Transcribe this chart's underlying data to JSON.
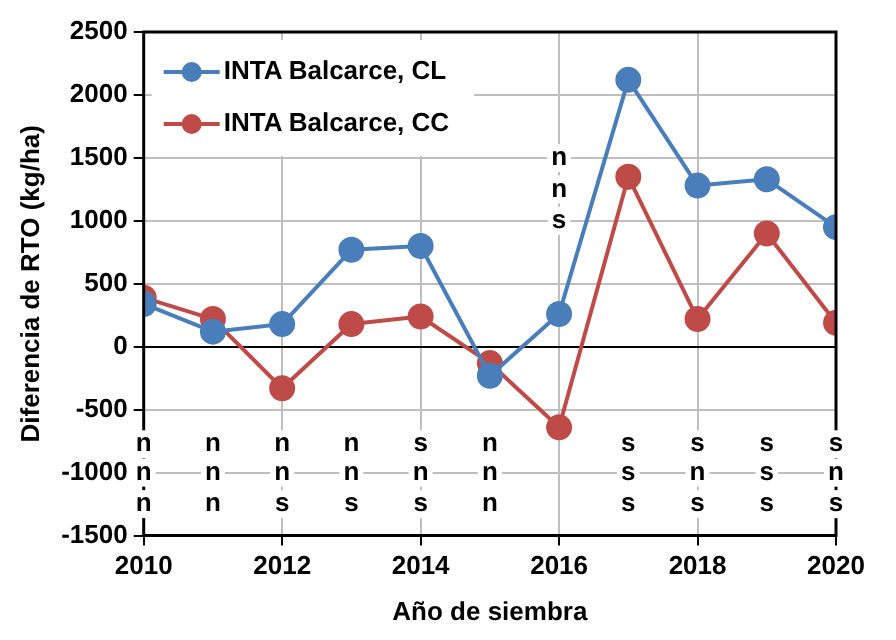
{
  "chart_data": {
    "type": "line",
    "xlabel": "Año de siembra",
    "ylabel": "Diferencia de RTO (kg/ha)",
    "x": [
      2010,
      2011,
      2012,
      2013,
      2014,
      2015,
      2016,
      2017,
      2018,
      2019,
      2020
    ],
    "series": [
      {
        "name": "INTA Balcarce, CL",
        "color": "#4a7ebb",
        "values": [
          340,
          120,
          180,
          770,
          800,
          -230,
          260,
          2120,
          1280,
          1330,
          950
        ]
      },
      {
        "name": "INTA Balcarce, CC",
        "color": "#be4b48",
        "values": [
          390,
          220,
          -330,
          180,
          240,
          -130,
          -640,
          1350,
          220,
          900,
          190
        ]
      }
    ],
    "xlim": [
      2010,
      2020
    ],
    "xticks": [
      2010,
      2012,
      2014,
      2016,
      2018,
      2020
    ],
    "ylim": [
      -1500,
      2500
    ],
    "yticks": [
      -1500,
      -1000,
      -500,
      0,
      500,
      1000,
      1500,
      2000,
      2500
    ],
    "grid": true,
    "legend": "top left",
    "marker": "circle",
    "line_style": "solid",
    "annotations": [
      {
        "text": "n",
        "x": 2010,
        "y": -775
      },
      {
        "text": "n",
        "x": 2010,
        "y": -1000
      },
      {
        "text": "n",
        "x": 2010,
        "y": -1250
      },
      {
        "text": "n",
        "x": 2011,
        "y": -775
      },
      {
        "text": "n",
        "x": 2011,
        "y": -1000
      },
      {
        "text": "n",
        "x": 2011,
        "y": -1250
      },
      {
        "text": "n",
        "x": 2012,
        "y": -775
      },
      {
        "text": "n",
        "x": 2012,
        "y": -1000
      },
      {
        "text": "s",
        "x": 2012,
        "y": -1250
      },
      {
        "text": "n",
        "x": 2013,
        "y": -775
      },
      {
        "text": "n",
        "x": 2013,
        "y": -1000
      },
      {
        "text": "s",
        "x": 2013,
        "y": -1250
      },
      {
        "text": "s",
        "x": 2014,
        "y": -775
      },
      {
        "text": "n",
        "x": 2014,
        "y": -1000
      },
      {
        "text": "s",
        "x": 2014,
        "y": -1250
      },
      {
        "text": "n",
        "x": 2015,
        "y": -775
      },
      {
        "text": "n",
        "x": 2015,
        "y": -1000
      },
      {
        "text": "n",
        "x": 2015,
        "y": -1250
      },
      {
        "text": "n",
        "x": 2016,
        "y": 1500
      },
      {
        "text": "n",
        "x": 2016,
        "y": 1250
      },
      {
        "text": "s",
        "x": 2016,
        "y": 1000
      },
      {
        "text": "s",
        "x": 2017,
        "y": -775
      },
      {
        "text": "s",
        "x": 2017,
        "y": -1000
      },
      {
        "text": "s",
        "x": 2017,
        "y": -1250
      },
      {
        "text": "s",
        "x": 2018,
        "y": -775
      },
      {
        "text": "n",
        "x": 2018,
        "y": -1000
      },
      {
        "text": "s",
        "x": 2018,
        "y": -1250
      },
      {
        "text": "s",
        "x": 2019,
        "y": -775
      },
      {
        "text": "s",
        "x": 2019,
        "y": -1000
      },
      {
        "text": "s",
        "x": 2019,
        "y": -1250
      },
      {
        "text": "s",
        "x": 2020,
        "y": -775
      },
      {
        "text": "n",
        "x": 2020,
        "y": -1000
      },
      {
        "text": "s",
        "x": 2020,
        "y": -1250
      }
    ]
  }
}
